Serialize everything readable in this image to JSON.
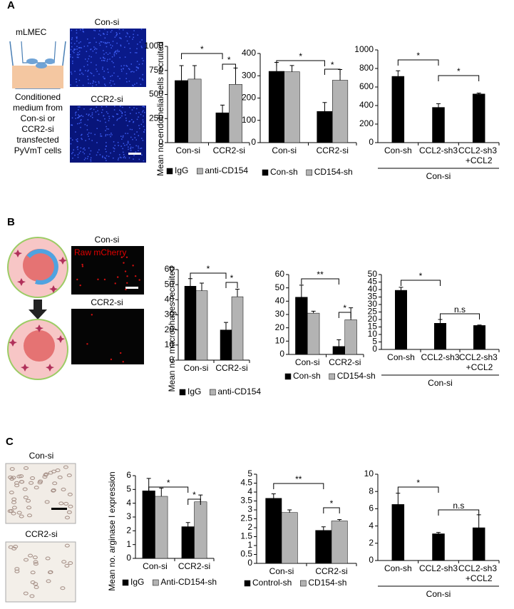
{
  "panels": {
    "A": {
      "label": "A",
      "schematic": {
        "cell": "mLMEC",
        "caption": [
          "Conditioned",
          "medium from",
          "Con-si or",
          "CCR2-si",
          "transfected",
          "PyVmT cells"
        ]
      },
      "images": [
        "Con-si",
        "CCR2-si"
      ]
    },
    "B": {
      "label": "B",
      "images": [
        "Con-si",
        "CCR2-si"
      ],
      "channel": "Raw mCherry"
    },
    "C": {
      "label": "C",
      "images": [
        "Con-si",
        "CCR2-si"
      ]
    }
  },
  "chart_data": [
    {
      "type": "bar",
      "ylabel": "Mean no. endothelial cells recruited",
      "categories": [
        "Con-si",
        "CCR2-si"
      ],
      "series": [
        {
          "name": "IgG",
          "color": "#000000",
          "values": [
            645,
            310
          ],
          "errors": [
            155,
            80
          ]
        },
        {
          "name": "anti-CD154",
          "color": "#b3b3b3",
          "values": [
            660,
            605
          ],
          "errors": [
            140,
            170
          ]
        }
      ],
      "ylim": [
        0,
        1000
      ],
      "yticks": [
        0,
        250,
        500,
        750,
        1000
      ],
      "annotations": [
        "*",
        "*"
      ]
    },
    {
      "type": "bar",
      "categories": [
        "Con-si",
        "CCR2-si"
      ],
      "series": [
        {
          "name": "Con-sh",
          "color": "#000000",
          "values": [
            320,
            140
          ],
          "errors": [
            40,
            40
          ]
        },
        {
          "name": "CD154-sh",
          "color": "#b3b3b3",
          "values": [
            318,
            280
          ],
          "errors": [
            28,
            48
          ]
        }
      ],
      "ylim": [
        0,
        400
      ],
      "yticks": [
        0,
        100,
        200,
        300,
        400
      ],
      "annotations": [
        "*",
        "*"
      ]
    },
    {
      "type": "bar",
      "categories": [
        "Con-sh",
        "CCL2-sh3",
        "CCL2-sh3 +CCL2"
      ],
      "color": "#000000",
      "values": [
        715,
        380,
        525
      ],
      "errors": [
        60,
        40,
        10
      ],
      "ylim": [
        0,
        1000
      ],
      "yticks": [
        0,
        200,
        400,
        600,
        800,
        1000
      ],
      "annotations": [
        "*",
        "*"
      ],
      "group_label": "Con-si"
    },
    {
      "type": "bar",
      "ylabel": "Mean no. macrophages recruited",
      "categories": [
        "Con-si",
        "CCR2-si"
      ],
      "series": [
        {
          "name": "IgG",
          "color": "#000000",
          "values": [
            49,
            20
          ],
          "errors": [
            5,
            5
          ]
        },
        {
          "name": "anti-CD154",
          "color": "#b3b3b3",
          "values": [
            46,
            42
          ],
          "errors": [
            5,
            5
          ]
        }
      ],
      "ylim": [
        0,
        60
      ],
      "yticks": [
        0,
        10,
        20,
        30,
        40,
        50,
        60
      ],
      "annotations": [
        "*",
        "*"
      ]
    },
    {
      "type": "bar",
      "categories": [
        "Con-si",
        "CCR2-si"
      ],
      "series": [
        {
          "name": "Con-sh",
          "color": "#000000",
          "values": [
            43,
            6
          ],
          "errors": [
            9,
            5
          ]
        },
        {
          "name": "CD154-sh",
          "color": "#b3b3b3",
          "values": [
            31,
            26
          ],
          "errors": [
            1.5,
            9
          ]
        }
      ],
      "ylim": [
        0,
        60
      ],
      "yticks": [
        0,
        10,
        20,
        30,
        40,
        50,
        60
      ],
      "annotations": [
        "**",
        "*"
      ]
    },
    {
      "type": "bar",
      "categories": [
        "Con-sh",
        "CCL2-sh3",
        "CCL2-sh3 +CCL2"
      ],
      "color": "#000000",
      "values": [
        39.5,
        17.5,
        16
      ],
      "errors": [
        2,
        2.5,
        0.3
      ],
      "ylim": [
        0,
        50
      ],
      "yticks": [
        0,
        5,
        10,
        15,
        20,
        25,
        30,
        35,
        40,
        45,
        50
      ],
      "annotations": [
        "*",
        "n.s"
      ],
      "group_label": "Con-si"
    },
    {
      "type": "bar",
      "ylabel": "Mean no. arginase I expression",
      "categories": [
        "Con-si",
        "CCR2-si"
      ],
      "series": [
        {
          "name": "IgG",
          "color": "#000000",
          "values": [
            4.9,
            2.3
          ],
          "errors": [
            0.9,
            0.3
          ]
        },
        {
          "name": "Anti-CD154-sh",
          "color": "#b3b3b3",
          "values": [
            4.5,
            4.1
          ],
          "errors": [
            0.6,
            0.5
          ]
        }
      ],
      "ylim": [
        0,
        6
      ],
      "yticks": [
        0,
        1,
        2,
        3,
        4,
        5,
        6
      ],
      "annotations": [
        "*",
        "*"
      ]
    },
    {
      "type": "bar",
      "categories": [
        "Con-si",
        "CCR2-si"
      ],
      "series": [
        {
          "name": "Control-sh",
          "color": "#000000",
          "values": [
            3.65,
            1.85
          ],
          "errors": [
            0.25,
            0.2
          ]
        },
        {
          "name": "CD154-sh",
          "color": "#b3b3b3",
          "values": [
            2.85,
            2.38
          ],
          "errors": [
            0.15,
            0.08
          ]
        }
      ],
      "ylim": [
        0,
        5
      ],
      "yticks": [
        0,
        0.5,
        1,
        1.5,
        2,
        2.5,
        3,
        3.5,
        4,
        4.5,
        5
      ],
      "annotations": [
        "**",
        "*"
      ]
    },
    {
      "type": "bar",
      "categories": [
        "Con-sh",
        "CCL2-sh3",
        "CCL2-sh3 +CCL2"
      ],
      "color": "#000000",
      "values": [
        6.5,
        3.1,
        3.8
      ],
      "errors": [
        1.3,
        0.15,
        1.5
      ],
      "ylim": [
        0,
        10
      ],
      "yticks": [
        0,
        2,
        4,
        6,
        8,
        10
      ],
      "annotations": [
        "*",
        "n.s"
      ],
      "group_label": "Con-si"
    }
  ]
}
